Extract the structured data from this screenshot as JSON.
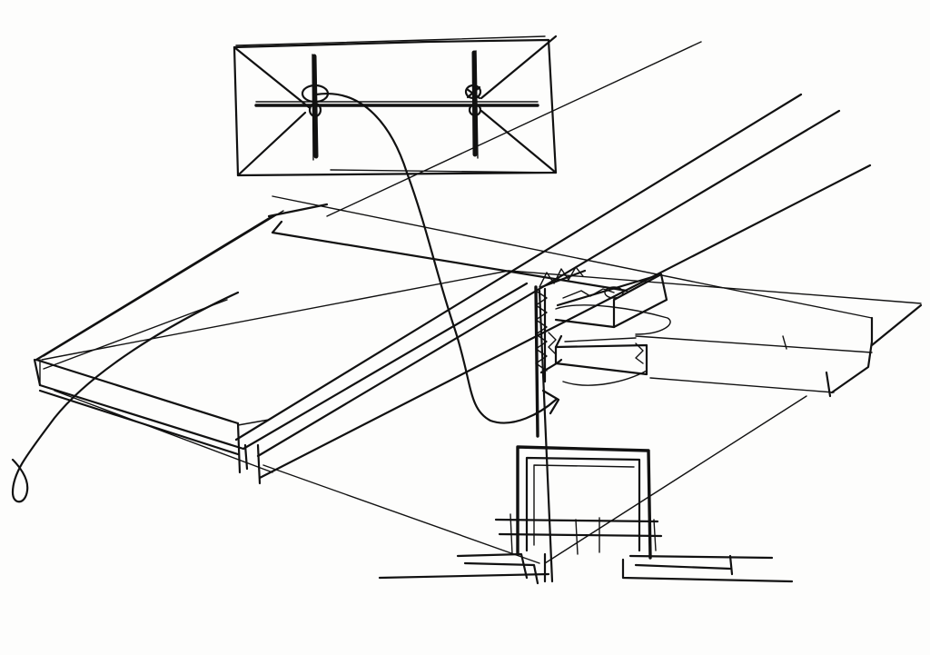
{
  "drawing": {
    "ink_color": "#111111",
    "paper_color": "#fdfdfc"
  }
}
